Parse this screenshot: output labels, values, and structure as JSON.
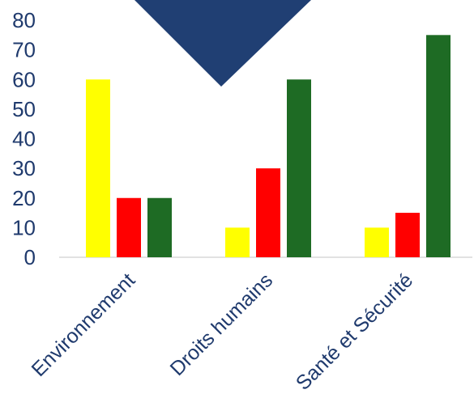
{
  "chart_data": {
    "type": "bar",
    "categories": [
      "Environnement",
      "Droits humains",
      "Santé et Sécurité"
    ],
    "series": [
      {
        "values": [
          60,
          10,
          10
        ],
        "color": "#ffff00"
      },
      {
        "values": [
          20,
          30,
          15
        ],
        "color": "#ff0000"
      },
      {
        "values": [
          20,
          60,
          75
        ],
        "color": "#1e6b24"
      }
    ],
    "ylim": [
      0,
      80
    ],
    "yticks": [
      0,
      10,
      20,
      30,
      40,
      50,
      60,
      70,
      80
    ],
    "grid": false,
    "title": "",
    "xlabel": "",
    "ylabel": ""
  },
  "colors": {
    "axis_text": "#1f3a6d",
    "baseline": "#d9d9d9",
    "decoration_triangle": "#203f73"
  }
}
